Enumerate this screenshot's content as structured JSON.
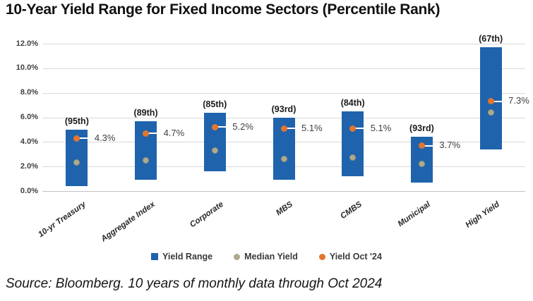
{
  "title": "10-Year Yield Range for Fixed Income Sectors (Percentile Rank)",
  "source_note": "Source: Bloomberg. 10 years of monthly data through Oct 2024",
  "legend": {
    "items": [
      {
        "label": "Yield Range",
        "swatch": "square",
        "color": "#1F63AC"
      },
      {
        "label": "Median Yield",
        "swatch": "circle",
        "color": "#AEAB8C"
      },
      {
        "label": "Yield Oct '24",
        "swatch": "circle",
        "color": "#E3762F"
      }
    ]
  },
  "chart_data": {
    "type": "bar",
    "subtype": "floating-range-bars-with-point-markers",
    "title": "10-Year Yield Range for Fixed Income Sectors (Percentile Rank)",
    "categories": [
      "10-yr Treasury",
      "Aggregate Index",
      "Corporate",
      "MBS",
      "CMBS",
      "Municipal",
      "High Yield"
    ],
    "series": [
      {
        "name": "Yield Range",
        "type": "range",
        "low": [
          0.4,
          0.9,
          1.6,
          0.9,
          1.2,
          0.7,
          3.4
        ],
        "high": [
          5.0,
          5.7,
          6.4,
          6.0,
          6.5,
          4.4,
          11.7
        ]
      },
      {
        "name": "Median Yield",
        "type": "point",
        "values": [
          2.3,
          2.5,
          3.3,
          2.6,
          2.7,
          2.2,
          6.4
        ]
      },
      {
        "name": "Yield Oct '24",
        "type": "point",
        "values": [
          4.3,
          4.7,
          5.2,
          5.1,
          5.1,
          3.7,
          7.3
        ],
        "labels": [
          "4.3%",
          "4.7%",
          "5.2%",
          "5.1%",
          "5.1%",
          "3.7%",
          "7.3%"
        ]
      }
    ],
    "annotations": {
      "percentile_labels": [
        "(95th)",
        "(89th)",
        "(85th)",
        "(93rd)",
        "(84th)",
        "(93rd)",
        "(67th)"
      ]
    },
    "xlabel": "",
    "ylabel": "",
    "ylim": [
      0,
      12
    ],
    "yticks": {
      "values": [
        0,
        2,
        4,
        6,
        8,
        10,
        12
      ],
      "labels": [
        "0.0%",
        "2.0%",
        "4.0%",
        "6.0%",
        "8.0%",
        "10.0%",
        "12.0%"
      ]
    },
    "grid": true,
    "legend_position": "bottom",
    "colors": {
      "range_bar": "#1F63AC",
      "median_dot": "#AEAB8C",
      "median_dot_border": "#96937A",
      "oct24_dot": "#E3762F",
      "gridline": "#D9D9D9",
      "axis_text": "#404040"
    }
  }
}
